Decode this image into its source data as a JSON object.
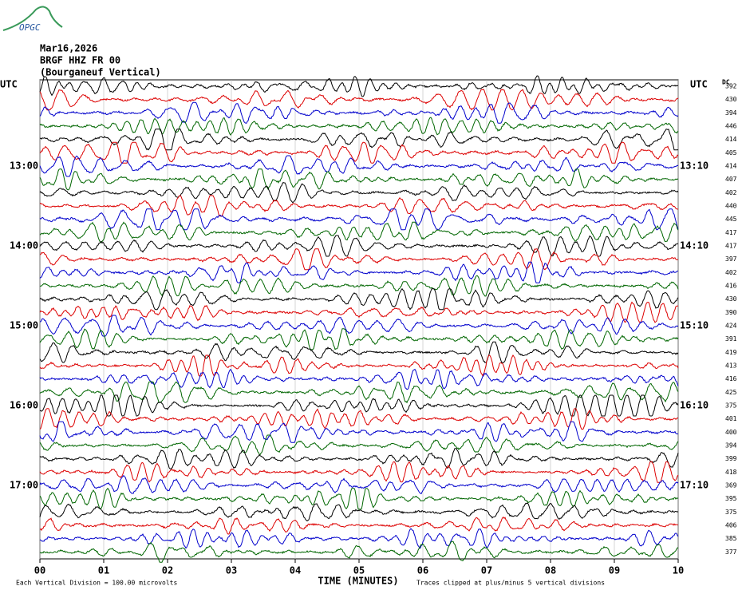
{
  "chart_data": {
    "type": "helicorder",
    "logo": "OPGC",
    "title_lines": [
      "Mar16,2026",
      "BRGF HHZ FR 00",
      "(Bourganeuf Vertical)"
    ],
    "left_labels": [
      "UTC",
      "13:00",
      "14:00",
      "15:00",
      "16:00",
      "17:00"
    ],
    "right_labels": [
      "UTC",
      "13:10",
      "14:10",
      "15:10",
      "16:10",
      "17:10"
    ],
    "dc_header": "DC",
    "dc_values": [
      392,
      430,
      394,
      446,
      414,
      405,
      414,
      407,
      402,
      440,
      445,
      417,
      417,
      397,
      402,
      416,
      430,
      390,
      424,
      391,
      419,
      413,
      416,
      425,
      375,
      401,
      400,
      394,
      399,
      418,
      369,
      395,
      375,
      406,
      385,
      377
    ],
    "trace_colors": [
      "#000000",
      "#dd0000",
      "#0000cc",
      "#006600"
    ],
    "xlabel": "TIME (MINUTES)",
    "xlim": [
      0,
      10
    ],
    "xticks": [
      {
        "value": 0,
        "label": "00"
      },
      {
        "value": 1,
        "label": "01"
      },
      {
        "value": 2,
        "label": "02"
      },
      {
        "value": 3,
        "label": "03"
      },
      {
        "value": 4,
        "label": "04"
      },
      {
        "value": 5,
        "label": "05"
      },
      {
        "value": 6,
        "label": "06"
      },
      {
        "value": 7,
        "label": "07"
      },
      {
        "value": 8,
        "label": "08"
      },
      {
        "value": 9,
        "label": "09"
      },
      {
        "value": 10,
        "label": "10"
      }
    ],
    "footer_left": "Each Vertical Division =  100.00 microvolts",
    "footer_right": "Traces clipped at plus/minus 5 vertical divisions"
  }
}
